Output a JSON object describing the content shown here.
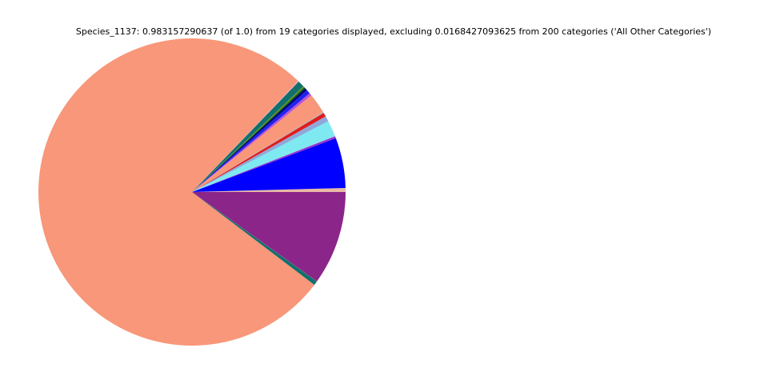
{
  "chart_data": {
    "type": "pie",
    "title": "Species_1137: 0.983157290637 (of 1.0) from 19 categories displayed, excluding 0.0168427093625 from 200 categories ('All Other Categories')",
    "values": [
      0.0041,
      0.0519,
      0.0022,
      0.0169,
      0.0055,
      0.0041,
      0.0011,
      0.0208,
      0.0027,
      0.0041,
      0.0027,
      0.0014,
      0.0014,
      0.0068,
      0.0008,
      0.7551,
      0.0041,
      0.0005,
      0.097
    ],
    "colors": [
      "#e9b9a6",
      "#0000ff",
      "#9932cc",
      "#7fe9f2",
      "#8fa8d8",
      "#e31a1c",
      "#b0b0b0",
      "#f89779",
      "#ba55d3",
      "#2222ee",
      "#000080",
      "#006400",
      "#6b8e23",
      "#11706e",
      "#f4a7c0",
      "#f89779",
      "#11706e",
      "#555555",
      "#8b258a"
    ],
    "start_angle": 0,
    "direction": "counterclockwise"
  }
}
